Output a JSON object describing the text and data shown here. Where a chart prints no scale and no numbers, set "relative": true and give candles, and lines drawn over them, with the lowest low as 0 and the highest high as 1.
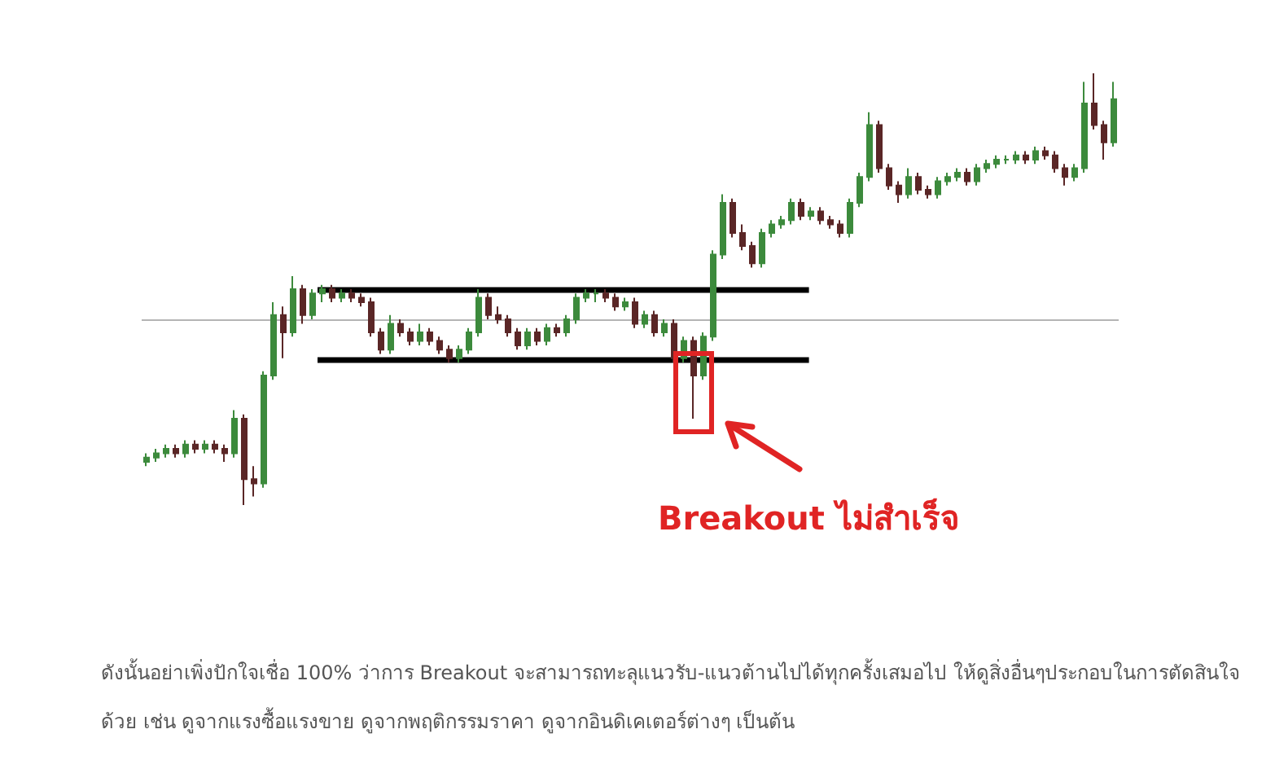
{
  "chart_data": {
    "type": "candlestick",
    "relative": true,
    "tick_labels": false,
    "categories": [
      null,
      null,
      null,
      null,
      null,
      null,
      null,
      null,
      null,
      null,
      null,
      null,
      null,
      null,
      null,
      null,
      null,
      null,
      null,
      null,
      null,
      null,
      null,
      null,
      null,
      null,
      null,
      null,
      null,
      null,
      null,
      null,
      null,
      null,
      null,
      null,
      null,
      null,
      null,
      null,
      null,
      null,
      null,
      null,
      null,
      null,
      null,
      null,
      null,
      null,
      null,
      null,
      null,
      null,
      null,
      null,
      null,
      null,
      null,
      null,
      null,
      null,
      null,
      null,
      null,
      null,
      null,
      null,
      null,
      null,
      null,
      null,
      null,
      null,
      null,
      null,
      null,
      null,
      null,
      null,
      null,
      null,
      null,
      null,
      null,
      null,
      null,
      null,
      null,
      null,
      null,
      null,
      null,
      null,
      null,
      null,
      null,
      null,
      null,
      null
    ],
    "colors": [
      "#3c8a3c",
      "#3c8a3c",
      "#3c8a3c",
      "#5a2626",
      "#3c8a3c",
      "#5a2626",
      "#3c8a3c",
      "#5a2626",
      "#5a2626",
      "#3c8a3c",
      "#5a2626",
      "#5a2626",
      "#3c8a3c",
      "#3c8a3c",
      "#5a2626",
      "#3c8a3c",
      "#5a2626",
      "#3c8a3c",
      "#3c8a3c",
      "#5a2626",
      "#3c8a3c",
      "#5a2626",
      "#5a2626",
      "#5a2626",
      "#5a2626",
      "#3c8a3c",
      "#5a2626",
      "#5a2626",
      "#3c8a3c",
      "#5a2626",
      "#5a2626",
      "#5a2626",
      "#3c8a3c",
      "#3c8a3c",
      "#3c8a3c",
      "#5a2626",
      "#5a2626",
      "#5a2626",
      "#5a2626",
      "#3c8a3c",
      "#5a2626",
      "#3c8a3c",
      "#5a2626",
      "#3c8a3c",
      "#3c8a3c",
      "#3c8a3c",
      "#3c8a3c",
      "#5a2626",
      "#5a2626",
      "#3c8a3c",
      "#5a2626",
      "#3c8a3c",
      "#5a2626",
      "#3c8a3c",
      "#5a2626",
      "#3c8a3c",
      "#5a2626",
      "#3c8a3c",
      "#3c8a3c",
      "#3c8a3c",
      "#5a2626",
      "#5a2626",
      "#5a2626",
      "#3c8a3c",
      "#3c8a3c",
      "#3c8a3c",
      "#3c8a3c",
      "#5a2626",
      "#3c8a3c",
      "#5a2626",
      "#5a2626",
      "#5a2626",
      "#3c8a3c",
      "#3c8a3c",
      "#3c8a3c",
      "#5a2626",
      "#5a2626",
      "#5a2626",
      "#3c8a3c",
      "#5a2626",
      "#5a2626",
      "#3c8a3c",
      "#3c8a3c",
      "#3c8a3c",
      "#5a2626",
      "#3c8a3c",
      "#3c8a3c",
      "#3c8a3c",
      "#3c8a3c",
      "#3c8a3c",
      "#5a2626",
      "#3c8a3c",
      "#5a2626",
      "#5a2626",
      "#5a2626",
      "#3c8a3c",
      "#3c8a3c",
      "#5a2626",
      "#5a2626",
      "#3c8a3c"
    ],
    "ohlc": [
      [
        0.1,
        0.12,
        0.09,
        0.11
      ],
      [
        0.11,
        0.13,
        0.1,
        0.12
      ],
      [
        0.12,
        0.14,
        0.11,
        0.13
      ],
      [
        0.13,
        0.14,
        0.11,
        0.12
      ],
      [
        0.12,
        0.15,
        0.11,
        0.14
      ],
      [
        0.14,
        0.15,
        0.12,
        0.13
      ],
      [
        0.13,
        0.15,
        0.12,
        0.14
      ],
      [
        0.14,
        0.15,
        0.12,
        0.13
      ],
      [
        0.13,
        0.14,
        0.1,
        0.12
      ],
      [
        0.12,
        0.22,
        0.11,
        0.2
      ],
      [
        0.2,
        0.21,
        0.0,
        0.06
      ],
      [
        0.06,
        0.09,
        0.02,
        0.05
      ],
      [
        0.05,
        0.31,
        0.04,
        0.3
      ],
      [
        0.3,
        0.47,
        0.29,
        0.44
      ],
      [
        0.44,
        0.46,
        0.34,
        0.4
      ],
      [
        0.4,
        0.53,
        0.39,
        0.5
      ],
      [
        0.5,
        0.51,
        0.42,
        0.44
      ],
      [
        0.44,
        0.5,
        0.43,
        0.49
      ],
      [
        0.49,
        0.51,
        0.47,
        0.5
      ],
      [
        0.5,
        0.51,
        0.47,
        0.48
      ],
      [
        0.48,
        0.5,
        0.47,
        0.49
      ],
      [
        0.49,
        0.5,
        0.47,
        0.48
      ],
      [
        0.48,
        0.49,
        0.46,
        0.47
      ],
      [
        0.47,
        0.48,
        0.39,
        0.4
      ],
      [
        0.4,
        0.41,
        0.35,
        0.36
      ],
      [
        0.36,
        0.44,
        0.35,
        0.42
      ],
      [
        0.42,
        0.43,
        0.39,
        0.4
      ],
      [
        0.4,
        0.41,
        0.37,
        0.38
      ],
      [
        0.38,
        0.42,
        0.37,
        0.4
      ],
      [
        0.4,
        0.41,
        0.37,
        0.38
      ],
      [
        0.38,
        0.39,
        0.35,
        0.36
      ],
      [
        0.36,
        0.37,
        0.33,
        0.34
      ],
      [
        0.34,
        0.37,
        0.33,
        0.36
      ],
      [
        0.36,
        0.41,
        0.35,
        0.4
      ],
      [
        0.4,
        0.5,
        0.39,
        0.48
      ],
      [
        0.48,
        0.49,
        0.43,
        0.44
      ],
      [
        0.44,
        0.46,
        0.42,
        0.43
      ],
      [
        0.43,
        0.44,
        0.39,
        0.4
      ],
      [
        0.4,
        0.41,
        0.36,
        0.37
      ],
      [
        0.37,
        0.41,
        0.36,
        0.4
      ],
      [
        0.4,
        0.41,
        0.37,
        0.38
      ],
      [
        0.38,
        0.42,
        0.37,
        0.41
      ],
      [
        0.41,
        0.42,
        0.39,
        0.4
      ],
      [
        0.4,
        0.44,
        0.39,
        0.43
      ],
      [
        0.43,
        0.49,
        0.42,
        0.48
      ],
      [
        0.48,
        0.5,
        0.47,
        0.49
      ],
      [
        0.49,
        0.5,
        0.47,
        0.49
      ],
      [
        0.49,
        0.5,
        0.47,
        0.48
      ],
      [
        0.48,
        0.49,
        0.45,
        0.46
      ],
      [
        0.46,
        0.48,
        0.45,
        0.47
      ],
      [
        0.47,
        0.48,
        0.41,
        0.42
      ],
      [
        0.42,
        0.45,
        0.41,
        0.44
      ],
      [
        0.44,
        0.45,
        0.39,
        0.4
      ],
      [
        0.4,
        0.43,
        0.39,
        0.42
      ],
      [
        0.42,
        0.43,
        0.33,
        0.34
      ],
      [
        0.34,
        0.39,
        0.33,
        0.38
      ],
      [
        0.38,
        0.39,
        0.2,
        0.3
      ],
      [
        0.3,
        0.4,
        0.29,
        0.39
      ],
      [
        0.39,
        0.59,
        0.38,
        0.58
      ],
      [
        0.58,
        0.72,
        0.57,
        0.7
      ],
      [
        0.7,
        0.71,
        0.62,
        0.63
      ],
      [
        0.63,
        0.65,
        0.59,
        0.6
      ],
      [
        0.6,
        0.61,
        0.55,
        0.56
      ],
      [
        0.56,
        0.64,
        0.55,
        0.63
      ],
      [
        0.63,
        0.66,
        0.62,
        0.65
      ],
      [
        0.65,
        0.67,
        0.64,
        0.66
      ],
      [
        0.66,
        0.71,
        0.65,
        0.7
      ],
      [
        0.7,
        0.71,
        0.66,
        0.67
      ],
      [
        0.67,
        0.69,
        0.66,
        0.68
      ],
      [
        0.68,
        0.69,
        0.65,
        0.66
      ],
      [
        0.66,
        0.67,
        0.64,
        0.65
      ],
      [
        0.65,
        0.66,
        0.62,
        0.63
      ],
      [
        0.63,
        0.71,
        0.62,
        0.7
      ],
      [
        0.7,
        0.77,
        0.69,
        0.76
      ],
      [
        0.76,
        0.91,
        0.75,
        0.88
      ],
      [
        0.88,
        0.89,
        0.77,
        0.78
      ],
      [
        0.78,
        0.79,
        0.73,
        0.74
      ],
      [
        0.74,
        0.75,
        0.7,
        0.72
      ],
      [
        0.72,
        0.78,
        0.71,
        0.76
      ],
      [
        0.76,
        0.77,
        0.72,
        0.73
      ],
      [
        0.73,
        0.74,
        0.71,
        0.72
      ],
      [
        0.72,
        0.76,
        0.71,
        0.75
      ],
      [
        0.75,
        0.77,
        0.74,
        0.76
      ],
      [
        0.76,
        0.78,
        0.75,
        0.77
      ],
      [
        0.77,
        0.78,
        0.74,
        0.75
      ],
      [
        0.75,
        0.79,
        0.74,
        0.78
      ],
      [
        0.78,
        0.8,
        0.77,
        0.79
      ],
      [
        0.79,
        0.81,
        0.78,
        0.8
      ],
      [
        0.8,
        0.81,
        0.79,
        0.8
      ],
      [
        0.8,
        0.82,
        0.79,
        0.81
      ],
      [
        0.81,
        0.82,
        0.79,
        0.8
      ],
      [
        0.8,
        0.83,
        0.79,
        0.82
      ],
      [
        0.82,
        0.83,
        0.8,
        0.81
      ],
      [
        0.81,
        0.82,
        0.77,
        0.78
      ],
      [
        0.78,
        0.79,
        0.74,
        0.76
      ],
      [
        0.76,
        0.79,
        0.75,
        0.78
      ],
      [
        0.78,
        0.98,
        0.77,
        0.93
      ],
      [
        0.93,
        1.0,
        0.87,
        0.88
      ],
      [
        0.88,
        0.89,
        0.8,
        0.84
      ],
      [
        0.84,
        0.98,
        0.83,
        0.94
      ]
    ],
    "ref_lines": [
      {
        "axis": "y",
        "value": 0.5,
        "color": "#000000"
      },
      {
        "axis": "y",
        "value": 0.335,
        "color": "#000000"
      },
      {
        "axis": "y",
        "value": 0.43,
        "color": "#b4b4b4"
      }
    ],
    "annotations": [
      "Breakout ไม่สำเร็จ",
      "ดังนั้นอย่าเพิ่งปักใจเชื่อ 100% ว่าการ Breakout จะสามารถทะลุแนวรับ-แนวต้านไปได้ทุกครั้งเสมอไป ให้ดูสิ่งอื่นๆประกอบในการตัดสินใจด้วย เช่น ดูจากแรงซื้อแรงขาย ดูจากพฤติกรรมราคา ดูจากอินดิเคเตอร์ต่างๆ เป็นต้น"
    ]
  }
}
